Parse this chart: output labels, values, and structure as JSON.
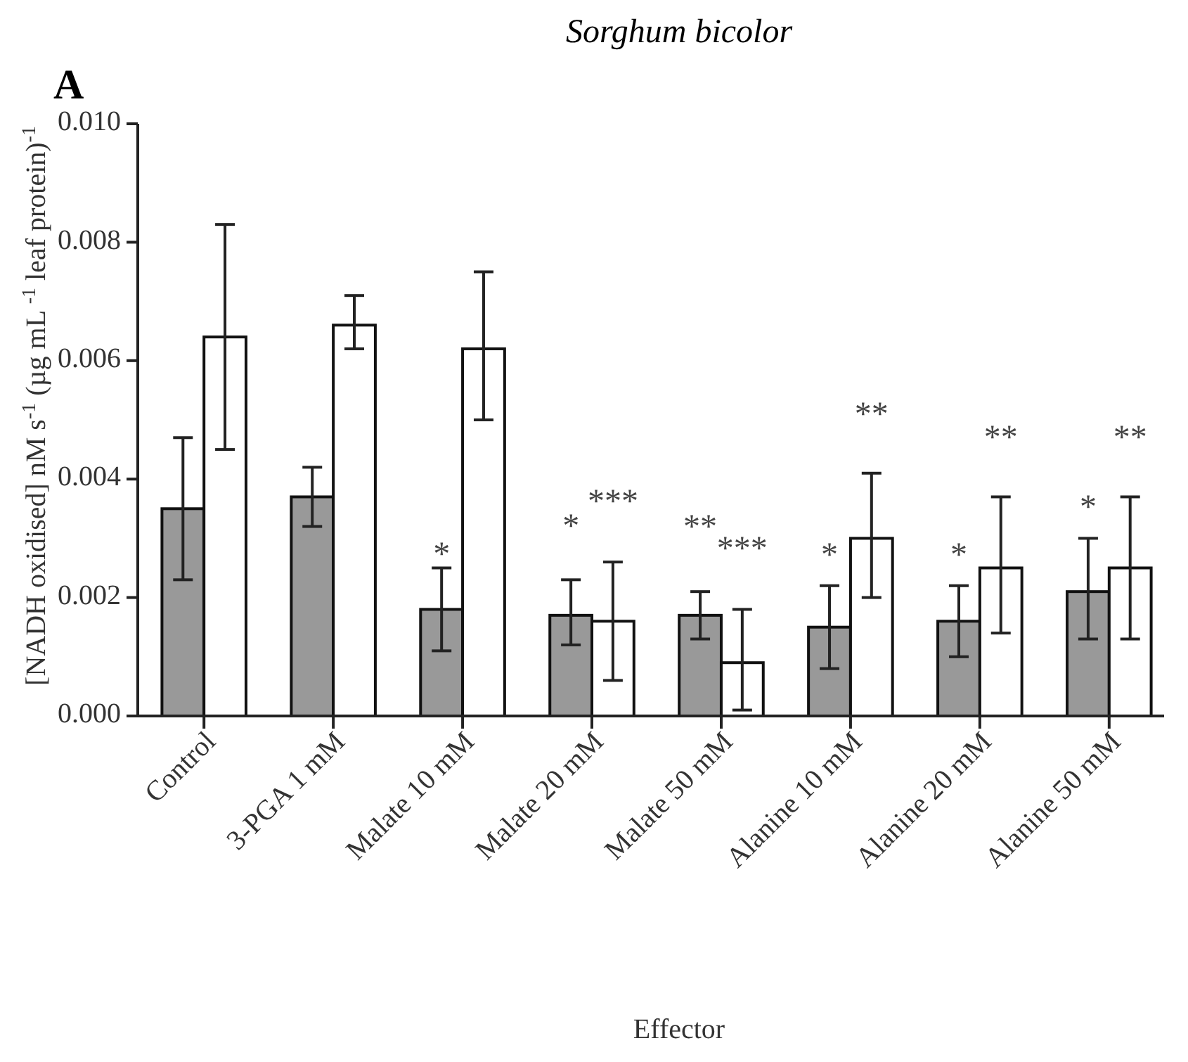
{
  "chart_data": {
    "type": "bar",
    "title": "Sorghum bicolor",
    "xlabel": "Effector",
    "ylabel": "[NADH oxidised] nM s$^{-1}$ (µg mL $^{-1}$ leaf protein)$^{-1}$",
    "categories": [
      "Control",
      "3-PGA 1 mM",
      "Malate 10 mM",
      "Malate 20 mM",
      "Malate 50 mM",
      "Alanine 10 mM",
      "Alanine 20 mM",
      "Alanine 50 mM"
    ],
    "series": [
      {
        "color": "#999999",
        "values": [
          0.0035,
          0.0037,
          0.0018,
          0.0017,
          0.0017,
          0.0015,
          0.0016,
          0.0021
        ],
        "errors": [
          [
            0.0023,
            0.0047
          ],
          [
            0.0032,
            0.0042
          ],
          [
            0.0011,
            0.0025
          ],
          [
            0.0012,
            0.0023
          ],
          [
            0.0013,
            0.0021
          ],
          [
            0.0008,
            0.0022
          ],
          [
            0.001,
            0.0022
          ],
          [
            0.0013,
            0.003
          ]
        ]
      },
      {
        "color": "#ffffff",
        "values": [
          0.0064,
          0.0066,
          0.0062,
          0.0016,
          0.0009,
          0.003,
          0.0025,
          0.0025
        ],
        "errors": [
          [
            0.0045,
            0.0083
          ],
          [
            0.0062,
            0.0071
          ],
          [
            0.005,
            0.0075
          ],
          [
            0.0006,
            0.0026
          ],
          [
            0.0001,
            0.0018
          ],
          [
            0.002,
            0.0041
          ],
          [
            0.0014,
            0.0037
          ],
          [
            0.0013,
            0.0037
          ]
        ]
      }
    ],
    "ylim": [
      0,
      0.01
    ],
    "yticks": [
      {
        "value": 0,
        "label": "0.000"
      },
      {
        "value": 0.002,
        "label": "0.002"
      },
      {
        "value": 0.004,
        "label": "0.004"
      },
      {
        "value": 0.006,
        "label": "0.006"
      },
      {
        "value": 0.008,
        "label": "0.008"
      },
      {
        "value": 0.01,
        "label": "0.010"
      }
    ],
    "grid": false,
    "annotations": [
      "A",
      "*",
      "*",
      "***",
      "**",
      "***",
      "*",
      "**",
      "*",
      "**",
      "*",
      "**"
    ]
  }
}
